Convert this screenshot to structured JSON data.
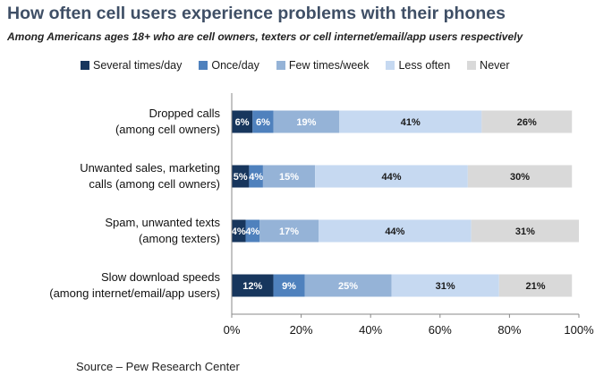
{
  "chart_data": {
    "type": "bar",
    "orientation": "horizontal",
    "stacked": true,
    "title": "How often cell users experience problems with their phones",
    "subtitle": "Among Americans ages 18+ who are cell owners, texters or cell internet/email/app users respectively",
    "categories": [
      [
        "Dropped calls",
        "(among cell owners)"
      ],
      [
        "Unwanted sales, marketing",
        "calls (among cell owners)"
      ],
      [
        "Spam, unwanted texts",
        "(among texters)"
      ],
      [
        "Slow download speeds",
        "(among internet/email/app users)"
      ]
    ],
    "series": [
      {
        "name": "Several times/day",
        "color": "#17365d",
        "label_color": "#ffffff",
        "values": [
          6,
          5,
          4,
          12
        ],
        "labels": [
          "6%",
          "5%",
          "4%",
          "12%"
        ]
      },
      {
        "name": "Once/day",
        "color": "#4f81bd",
        "label_color": "#ffffff",
        "values": [
          6,
          4,
          4,
          9
        ],
        "labels": [
          "6%",
          "4%",
          "4%",
          "9%"
        ]
      },
      {
        "name": "Few times/week",
        "color": "#95b3d7",
        "label_color": "#ffffff",
        "values": [
          19,
          15,
          17,
          25
        ],
        "labels": [
          "19%",
          "15%",
          "17%",
          "25%"
        ]
      },
      {
        "name": "Less often",
        "color": "#c6d9f1",
        "label_color": "#1a1a1a",
        "values": [
          41,
          44,
          44,
          31
        ],
        "labels": [
          "41%",
          "44%",
          "44%",
          "31%"
        ]
      },
      {
        "name": "Never",
        "color": "#d9d9d9",
        "label_color": "#1a1a1a",
        "values": [
          26,
          30,
          31,
          21
        ],
        "labels": [
          "26%",
          "30%",
          "31%",
          "21%"
        ]
      }
    ],
    "xlim": [
      0,
      100
    ],
    "xticks": [
      "0%",
      "20%",
      "40%",
      "60%",
      "80%",
      "100%"
    ],
    "legend_position": "top",
    "grid": false
  },
  "source": "Source – Pew Research Center"
}
